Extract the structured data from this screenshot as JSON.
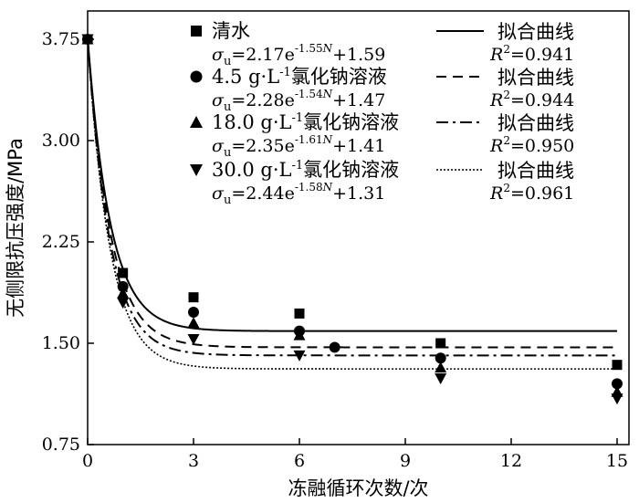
{
  "chart_data": {
    "type": "scatter",
    "xlabel": "冻融循环次数/次",
    "ylabel": "无侧限抗压强度/MPa",
    "xlim": [
      0,
      15
    ],
    "ylim": [
      0.75,
      3.9
    ],
    "xticks": [
      "0",
      "3",
      "6",
      "9",
      "12",
      "15"
    ],
    "xtick_values": [
      0,
      3,
      6,
      9,
      12,
      15
    ],
    "yticks": [
      "0.75",
      "1.50",
      "2.25",
      "3.00",
      "3.75"
    ],
    "ytick_values": [
      0.75,
      1.5,
      2.25,
      3.0,
      3.75
    ],
    "grid": false,
    "legend_position": "top",
    "fit_label": "拟合曲线",
    "series": [
      {
        "name": "清水",
        "marker": "square",
        "line_style": "solid",
        "equation": "σu=2.17e-1.55N+1.59",
        "eq_coeff": "2.17",
        "eq_exp": "-1.55",
        "eq_const": "+1.59",
        "r2": "0.941",
        "fit": {
          "a": 2.17,
          "b": 1.55,
          "c": 1.59
        },
        "points": [
          [
            0,
            3.75
          ],
          [
            1,
            2.02
          ],
          [
            3,
            1.84
          ],
          [
            6,
            1.72
          ],
          [
            10,
            1.5
          ],
          [
            15,
            1.34
          ]
        ]
      },
      {
        "name": "4.5 g·L-1氯化钠溶液",
        "name_main": "4.5 g·L",
        "name_sup": "-1",
        "name_tail": "氯化钠溶液",
        "marker": "circle",
        "line_style": "dashed",
        "equation": "σu=2.28e-1.54N+1.47",
        "eq_coeff": "2.28",
        "eq_exp": "-1.54",
        "eq_const": "+1.47",
        "r2": "0.944",
        "fit": {
          "a": 2.28,
          "b": 1.54,
          "c": 1.47
        },
        "points": [
          [
            0,
            3.75
          ],
          [
            1,
            1.92
          ],
          [
            3,
            1.73
          ],
          [
            6,
            1.59
          ],
          [
            7,
            1.47
          ],
          [
            10,
            1.39
          ],
          [
            15,
            1.2
          ]
        ]
      },
      {
        "name": "18.0 g·L-1氯化钠溶液",
        "name_main": "18.0 g·L",
        "name_sup": "-1",
        "name_tail": "氯化钠溶液",
        "marker": "triangle-up",
        "line_style": "dashdot",
        "equation": "σu=2.35e-1.61N+1.41",
        "eq_coeff": "2.35",
        "eq_exp": "-1.61",
        "eq_const": "+1.41",
        "r2": "0.950",
        "fit": {
          "a": 2.35,
          "b": 1.61,
          "c": 1.41
        },
        "points": [
          [
            0,
            3.75
          ],
          [
            1,
            1.87
          ],
          [
            3,
            1.65
          ],
          [
            6,
            1.56
          ],
          [
            10,
            1.32
          ],
          [
            15,
            1.14
          ]
        ]
      },
      {
        "name": "30.0 g·L-1氯化钠溶液",
        "name_main": "30.0 g·L",
        "name_sup": "-1",
        "name_tail": "氯化钠溶液",
        "marker": "triangle-down",
        "line_style": "dotted",
        "equation": "σu=2.44e-1.58N+1.31",
        "eq_coeff": "2.44",
        "eq_exp": "-1.58",
        "eq_const": "+1.31",
        "r2": "0.961",
        "fit": {
          "a": 2.44,
          "b": 1.58,
          "c": 1.31
        },
        "points": [
          [
            0,
            3.75
          ],
          [
            1,
            1.8
          ],
          [
            3,
            1.53
          ],
          [
            6,
            1.41
          ],
          [
            10,
            1.24
          ],
          [
            15,
            1.09
          ]
        ]
      }
    ]
  }
}
